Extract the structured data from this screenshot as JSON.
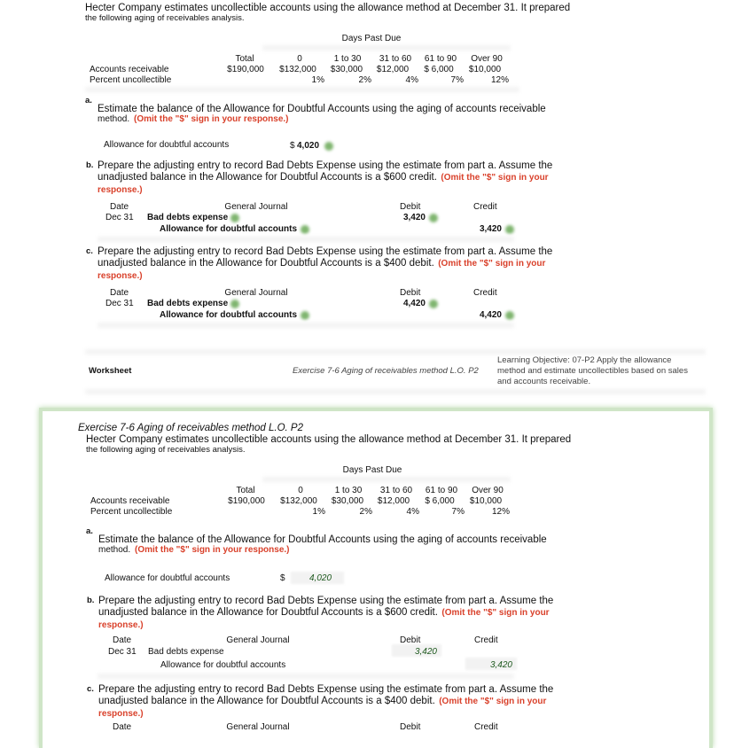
{
  "intro": {
    "line1": "Hecter Company estimates uncollectible accounts using the allowance method at December 31. It prepared",
    "line2": "the following aging of receivables analysis."
  },
  "aging": {
    "group_header": "Days Past Due",
    "columns": [
      "Total",
      "0",
      "1 to 30",
      "31 to 60",
      "61 to 90",
      "Over 90"
    ],
    "rows": [
      {
        "label": "Accounts receivable",
        "values": [
          "$190,000",
          "$132,000",
          "$30,000",
          "$12,000",
          "$ 6,000",
          "$10,000"
        ]
      },
      {
        "label": "Percent uncollectible",
        "values": [
          "",
          "1%",
          "2%",
          "4%",
          "7%",
          "12%"
        ]
      }
    ]
  },
  "part_a": {
    "marker": "a.",
    "text": "Estimate the balance of the Allowance for Doubtful Accounts using the aging of accounts receivable",
    "text2": "method.",
    "note": "(Omit the \"$\" sign in your response.)",
    "field_label": "Allowance for doubtful accounts",
    "currency": "$",
    "answer": "4,020"
  },
  "part_b": {
    "marker": "b.",
    "line1": "Prepare the adjusting entry to record Bad Debts Expense using the estimate from part a. Assume the",
    "line2": "unadjusted balance in the Allowance for Doubtful Accounts is a $600 credit.",
    "note1": "(Omit the \"$\" sign in your",
    "note2": "response.)",
    "journal": {
      "headers": [
        "Date",
        "General Journal",
        "Debit",
        "Credit"
      ],
      "date": "Dec 31",
      "debit_account": "Bad debts expense",
      "credit_account": "Allowance for doubtful accounts",
      "debit": "3,420",
      "credit": "3,420"
    }
  },
  "part_c": {
    "marker": "c.",
    "line1": "Prepare the adjusting entry to record Bad Debts Expense using the estimate from part a. Assume the",
    "line2": "unadjusted balance in the Allowance for Doubtful Accounts is a $400 debit.",
    "note1": "(Omit the \"$\" sign in your",
    "note2": "response.)",
    "journal": {
      "headers": [
        "Date",
        "General Journal",
        "Debit",
        "Credit"
      ],
      "date": "Dec 31",
      "debit_account": "Bad debts expense",
      "credit_account": "Allowance for doubtful accounts",
      "debit": "4,420",
      "credit": "4,420"
    }
  },
  "footer": {
    "worksheet": "Worksheet",
    "exercise": "Exercise 7-6 Aging of receivables method L.O. P2",
    "objective1": "Learning Objective: 07-P2 Apply the allowance",
    "objective2": "method and estimate uncollectibles based on sales",
    "objective3": "and accounts receivable."
  },
  "second": {
    "title": "Exercise 7-6 Aging of receivables method L.O. P2"
  },
  "colors": {
    "note_red": "#d9412b",
    "check_green": "#7fb56f",
    "box_border": "#cfe5c7"
  }
}
